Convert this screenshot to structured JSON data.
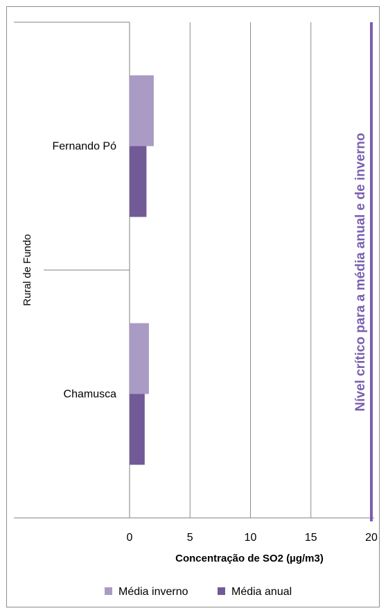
{
  "chart_data": {
    "type": "bar",
    "orientation": "horizontal",
    "group_label": "Rural de Fundo",
    "categories": [
      "Fernando Pó",
      "Chamusca"
    ],
    "series": [
      {
        "name": "Média inverno",
        "color": "#a99bc4",
        "values": [
          2.0,
          1.6
        ]
      },
      {
        "name": "Média anual",
        "color": "#725a96",
        "values": [
          1.4,
          1.25
        ]
      }
    ],
    "xlabel": "Concentração de SO2  (µg/m3)",
    "xlim": [
      0,
      20
    ],
    "xticks": [
      "0",
      "5",
      "10",
      "15",
      "20"
    ],
    "grid": true,
    "legend_position": "bottom",
    "reference_line": {
      "value": 20,
      "label": "Nível crítico para a média anual e de inverno",
      "color": "#7b5fad"
    }
  }
}
